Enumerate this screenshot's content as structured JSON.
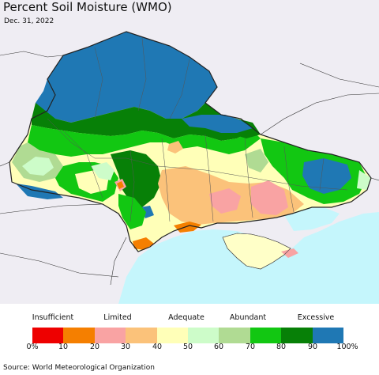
{
  "title": "Percent Soil Moisture (WMO)",
  "date": "Dec. 31, 2022",
  "legend": {
    "categories": [
      "Insufficient",
      "Limited",
      "Adequate",
      "Abundant",
      "Excessive"
    ],
    "ticks": [
      "0%",
      "10",
      "20",
      "30",
      "40",
      "50",
      "60",
      "70",
      "80",
      "90",
      "100%"
    ],
    "colors": [
      "#ee0000",
      "#f57f00",
      "#f9a3a3",
      "#fbc27a",
      "#ffffb8",
      "#cdfcc9",
      "#b0db93",
      "#12c712",
      "#078007",
      "#1f78b4"
    ]
  },
  "source": "Source: World Meteorological Organization",
  "map": {
    "land_color": "#efedf3",
    "sea_color": "#c5f6fc",
    "border_color": "#333333"
  }
}
